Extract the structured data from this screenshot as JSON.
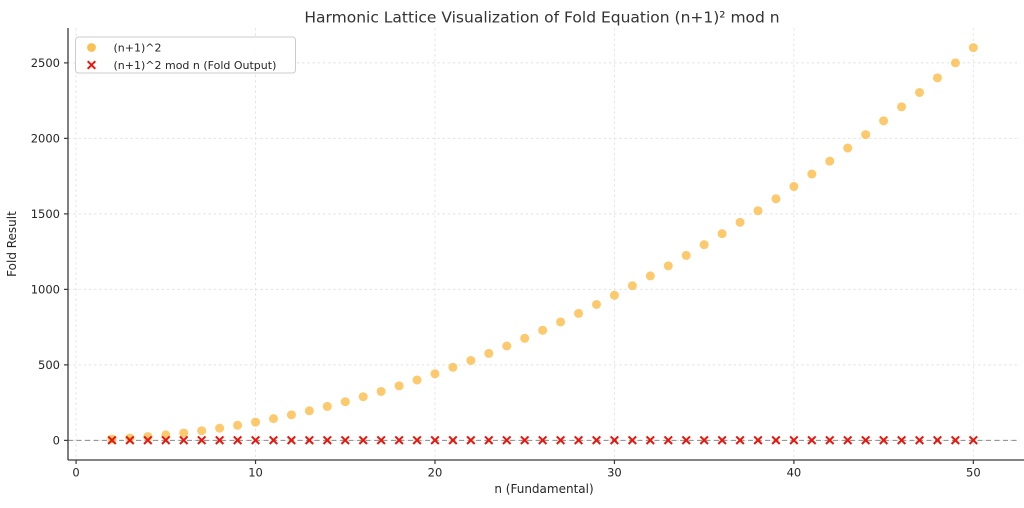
{
  "chart_data": {
    "type": "scatter",
    "title": "Harmonic Lattice Visualization of Fold Equation (n+1)² mod n",
    "xlabel": "n (Fundamental)",
    "ylabel": "Fold Result",
    "x": [
      2,
      3,
      4,
      5,
      6,
      7,
      8,
      9,
      10,
      11,
      12,
      13,
      14,
      15,
      16,
      17,
      18,
      19,
      20,
      21,
      22,
      23,
      24,
      25,
      26,
      27,
      28,
      29,
      30,
      31,
      32,
      33,
      34,
      35,
      36,
      37,
      38,
      39,
      40,
      41,
      42,
      43,
      44,
      45,
      46,
      47,
      48,
      49,
      50
    ],
    "series": [
      {
        "name": "(n+1)^2",
        "marker": "circle",
        "color": "#FBC052",
        "values": [
          9,
          16,
          25,
          36,
          49,
          64,
          81,
          100,
          121,
          144,
          169,
          196,
          225,
          256,
          289,
          324,
          361,
          400,
          441,
          484,
          529,
          576,
          625,
          676,
          729,
          784,
          841,
          900,
          961,
          1024,
          1089,
          1156,
          1225,
          1296,
          1369,
          1444,
          1521,
          1600,
          1681,
          1764,
          1849,
          1936,
          2025,
          2116,
          2209,
          2304,
          2401,
          2500,
          2601
        ]
      },
      {
        "name": "(n+1)^2 mod n (Fold Output)",
        "marker": "x",
        "color": "#E8160C",
        "values": [
          1,
          1,
          1,
          1,
          1,
          1,
          1,
          1,
          1,
          1,
          1,
          1,
          1,
          1,
          1,
          1,
          1,
          1,
          1,
          1,
          1,
          1,
          1,
          1,
          1,
          1,
          1,
          1,
          1,
          1,
          1,
          1,
          1,
          1,
          1,
          1,
          1,
          1,
          1,
          1,
          1,
          1,
          1,
          1,
          1,
          1,
          1,
          1,
          1
        ]
      }
    ],
    "xticks": [
      0,
      10,
      20,
      30,
      40,
      50
    ],
    "yticks": [
      0,
      500,
      1000,
      1500,
      2000,
      2500
    ],
    "xlim": [
      -0.45,
      52.6
    ],
    "ylim": [
      -130,
      2731
    ],
    "grid": true,
    "legend_position": "upper-left",
    "zero_line": {
      "y": 0,
      "style": "dashed"
    },
    "colors": {
      "grid": "#E4E4E4",
      "zero_line": "#8A8A8A",
      "spine": "#3A3A3A",
      "tick": "#3A3A3A",
      "legend_border": "#CCCCCC",
      "legend_bg": "#FFFFFF"
    }
  }
}
